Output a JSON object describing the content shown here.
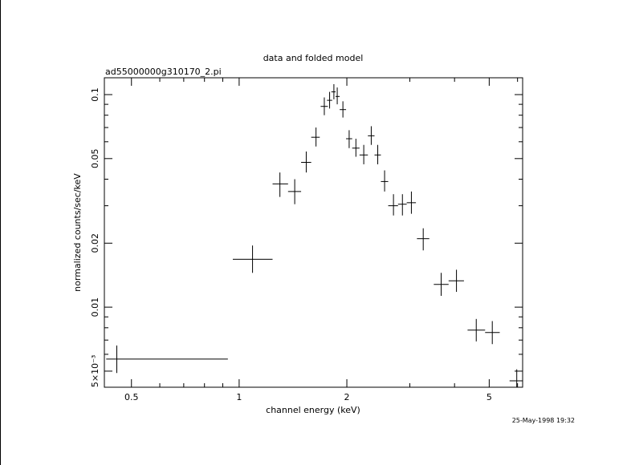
{
  "chart_data": {
    "type": "scatter",
    "title": "data and folded model",
    "subtitle": "ad55000000g310170_2.pi",
    "xlabel": "channel energy (keV)",
    "ylabel": "normalized counts/sec/keV",
    "xscale": "log",
    "yscale": "log",
    "xlim": [
      0.42,
      6.2
    ],
    "ylim": [
      0.0042,
      0.12
    ],
    "x_ticks": [
      {
        "value": 0.5,
        "label": "0.5"
      },
      {
        "value": 1,
        "label": "1"
      },
      {
        "value": 2,
        "label": "2"
      },
      {
        "value": 5,
        "label": "5"
      }
    ],
    "y_ticks": [
      {
        "value": 0.005,
        "label": "5×10⁻³"
      },
      {
        "value": 0.01,
        "label": "0.01"
      },
      {
        "value": 0.02,
        "label": "0.02"
      },
      {
        "value": 0.05,
        "label": "0.05"
      },
      {
        "value": 0.1,
        "label": "0.1"
      }
    ],
    "grid": false,
    "points": [
      {
        "x": 0.455,
        "xlo": 0.425,
        "xhi": 0.93,
        "y": 0.0057,
        "ylo": 0.0049,
        "yhi": 0.0066
      },
      {
        "x": 1.09,
        "xlo": 0.96,
        "xhi": 1.24,
        "y": 0.0168,
        "ylo": 0.0145,
        "yhi": 0.0195
      },
      {
        "x": 1.3,
        "xlo": 1.24,
        "xhi": 1.37,
        "y": 0.038,
        "ylo": 0.033,
        "yhi": 0.043
      },
      {
        "x": 1.43,
        "xlo": 1.37,
        "xhi": 1.49,
        "y": 0.035,
        "ylo": 0.0305,
        "yhi": 0.04
      },
      {
        "x": 1.54,
        "xlo": 1.49,
        "xhi": 1.59,
        "y": 0.048,
        "ylo": 0.043,
        "yhi": 0.054
      },
      {
        "x": 1.64,
        "xlo": 1.59,
        "xhi": 1.68,
        "y": 0.063,
        "ylo": 0.057,
        "yhi": 0.07
      },
      {
        "x": 1.73,
        "xlo": 1.69,
        "xhi": 1.77,
        "y": 0.088,
        "ylo": 0.08,
        "yhi": 0.097
      },
      {
        "x": 1.79,
        "xlo": 1.76,
        "xhi": 1.82,
        "y": 0.094,
        "ylo": 0.086,
        "yhi": 0.103
      },
      {
        "x": 1.84,
        "xlo": 1.81,
        "xhi": 1.86,
        "y": 0.103,
        "ylo": 0.095,
        "yhi": 0.112
      },
      {
        "x": 1.88,
        "xlo": 1.86,
        "xhi": 1.91,
        "y": 0.098,
        "ylo": 0.09,
        "yhi": 0.108
      },
      {
        "x": 1.95,
        "xlo": 1.91,
        "xhi": 1.99,
        "y": 0.085,
        "ylo": 0.078,
        "yhi": 0.093
      },
      {
        "x": 2.03,
        "xlo": 1.99,
        "xhi": 2.07,
        "y": 0.062,
        "ylo": 0.056,
        "yhi": 0.068
      },
      {
        "x": 2.12,
        "xlo": 2.07,
        "xhi": 2.17,
        "y": 0.056,
        "ylo": 0.051,
        "yhi": 0.062
      },
      {
        "x": 2.23,
        "xlo": 2.17,
        "xhi": 2.29,
        "y": 0.052,
        "ylo": 0.047,
        "yhi": 0.058
      },
      {
        "x": 2.34,
        "xlo": 2.29,
        "xhi": 2.39,
        "y": 0.064,
        "ylo": 0.058,
        "yhi": 0.071
      },
      {
        "x": 2.44,
        "xlo": 2.39,
        "xhi": 2.49,
        "y": 0.052,
        "ylo": 0.047,
        "yhi": 0.058
      },
      {
        "x": 2.55,
        "xlo": 2.49,
        "xhi": 2.61,
        "y": 0.039,
        "ylo": 0.035,
        "yhi": 0.044
      },
      {
        "x": 2.7,
        "xlo": 2.61,
        "xhi": 2.78,
        "y": 0.03,
        "ylo": 0.027,
        "yhi": 0.034
      },
      {
        "x": 2.86,
        "xlo": 2.78,
        "xhi": 2.94,
        "y": 0.0305,
        "ylo": 0.027,
        "yhi": 0.034
      },
      {
        "x": 3.03,
        "xlo": 2.94,
        "xhi": 3.12,
        "y": 0.031,
        "ylo": 0.0275,
        "yhi": 0.035
      },
      {
        "x": 3.27,
        "xlo": 3.14,
        "xhi": 3.4,
        "y": 0.021,
        "ylo": 0.0185,
        "yhi": 0.0235
      },
      {
        "x": 3.67,
        "xlo": 3.5,
        "xhi": 3.85,
        "y": 0.0128,
        "ylo": 0.0113,
        "yhi": 0.0145
      },
      {
        "x": 4.05,
        "xlo": 3.85,
        "xhi": 4.25,
        "y": 0.0133,
        "ylo": 0.0118,
        "yhi": 0.015
      },
      {
        "x": 4.6,
        "xlo": 4.35,
        "xhi": 4.87,
        "y": 0.0078,
        "ylo": 0.0069,
        "yhi": 0.0088
      },
      {
        "x": 5.1,
        "xlo": 4.87,
        "xhi": 5.35,
        "y": 0.0076,
        "ylo": 0.0067,
        "yhi": 0.0086
      },
      {
        "x": 5.97,
        "xlo": 5.7,
        "xhi": 6.2,
        "y": 0.0045,
        "ylo": 0.004,
        "yhi": 0.0051
      }
    ]
  },
  "timestamp": "25-May-1998 19:32"
}
